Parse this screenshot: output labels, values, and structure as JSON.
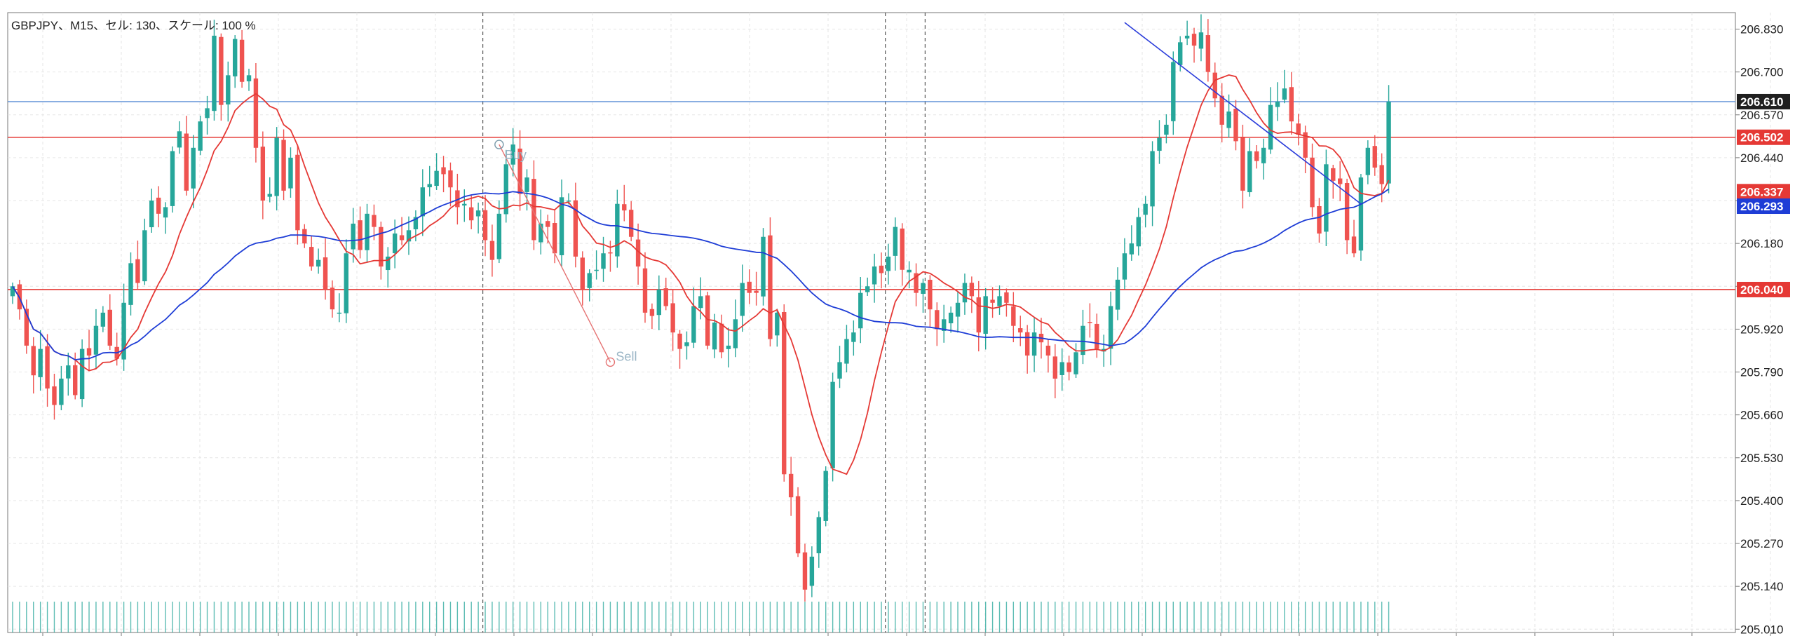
{
  "header": {
    "text": "GBPJPY、M15、セル: 130、スケール: 100 %"
  },
  "price_axis": {
    "labels": [
      "206.830",
      "206.700",
      "206.570",
      "206.440",
      "206.310",
      "206.180",
      "206.050",
      "205.920",
      "205.790",
      "205.660",
      "205.530",
      "205.400",
      "205.270",
      "205.140",
      "205.010"
    ]
  },
  "colors": {
    "bull": "#26a69a",
    "bear": "#ef5350",
    "ma_fast": "#e53935",
    "ma_slow": "#1e3dd6",
    "level": "#e53935",
    "current": "#5b8fd6",
    "trendline": "#2b3ddb",
    "signal_line": "#e57373",
    "signal_text": "#9bb6c6"
  },
  "chart_data": {
    "type": "candlestick",
    "title": "GBPJPY、M15、セル: 130、スケール: 100 %",
    "symbol": "GBPJPY",
    "timeframe": "M15",
    "ylim": [
      205.0,
      206.88
    ],
    "grid": true,
    "bars": 200,
    "closes": [
      206.05,
      205.98,
      205.87,
      205.78,
      205.86,
      205.74,
      205.69,
      205.77,
      205.81,
      205.72,
      205.86,
      205.84,
      205.93,
      205.97,
      205.87,
      205.83,
      206.0,
      206.12,
      206.06,
      206.22,
      206.31,
      206.27,
      206.29,
      206.46,
      206.52,
      206.34,
      206.47,
      206.55,
      206.59,
      206.81,
      206.6,
      206.69,
      206.8,
      206.67,
      206.69,
      206.47,
      206.31,
      206.33,
      206.5,
      206.34,
      206.44,
      206.22,
      206.18,
      206.11,
      206.13,
      206.04,
      205.98,
      205.97,
      206.15,
      206.24,
      206.16,
      206.27,
      206.23,
      206.11,
      206.14,
      206.21,
      206.19,
      206.22,
      206.26,
      206.35,
      206.36,
      206.4,
      206.39,
      206.35,
      206.29,
      206.3,
      206.25,
      206.28,
      206.19,
      206.13,
      206.27,
      206.42,
      206.48,
      206.33,
      206.38,
      206.19,
      206.24,
      206.23,
      206.15,
      206.32,
      206.31,
      206.14,
      206.04,
      206.09,
      206.1,
      206.15,
      206.15,
      206.3,
      206.28,
      206.2,
      206.11,
      205.97,
      205.96,
      206.04,
      205.99,
      205.91,
      205.86,
      205.88,
      205.99,
      206.02,
      205.87,
      205.94,
      205.85,
      205.87,
      205.95,
      206.06,
      206.03,
      206.03,
      206.2,
      205.89,
      205.97,
      205.48,
      205.41,
      205.24,
      205.13,
      205.23,
      205.35,
      205.49,
      205.76,
      205.82,
      205.89,
      205.91,
      206.03,
      206.05,
      206.11,
      206.09,
      206.14,
      206.23,
      206.1,
      206.1,
      206.03,
      206.06,
      205.98,
      205.92,
      205.95,
      205.97,
      206.0,
      206.06,
      206.02,
      205.91,
      206.02,
      206.0,
      206.02,
      206.0,
      205.93,
      205.91,
      205.84,
      205.91,
      205.88,
      205.84,
      205.77,
      205.82,
      205.79,
      205.85,
      205.93,
      205.94,
      205.86,
      205.86,
      205.99,
      206.07,
      206.15,
      206.18,
      206.26,
      206.3,
      206.46,
      206.5,
      206.54,
      206.73,
      206.79,
      206.81,
      206.78,
      206.82,
      206.7,
      206.62,
      206.54,
      206.58,
      206.49,
      206.34,
      206.46,
      206.43,
      206.47,
      206.6,
      206.61,
      206.65,
      206.55,
      206.51,
      206.44,
      206.29,
      206.21,
      206.42,
      206.37,
      206.36,
      206.19,
      206.15,
      206.38,
      206.47,
      206.41,
      206.36,
      206.61
    ],
    "series": [
      {
        "type": "moving-average",
        "period": 10
      },
      {
        "type": "moving-average",
        "period": 50
      }
    ],
    "horizontal_levels": [
      206.502,
      206.04
    ],
    "current_price": 206.61,
    "badges": [
      {
        "label": "206.610",
        "value": 206.61,
        "color": "#1f1f1f"
      },
      {
        "label": "206.502",
        "value": 206.502,
        "color": "#e53935"
      },
      {
        "label": "206.337",
        "value": 206.337,
        "color": "#e53935"
      },
      {
        "label": "206.293",
        "value": 206.293,
        "color": "#1e3dd6"
      },
      {
        "label": "206.040",
        "value": 206.04,
        "color": "#e53935"
      }
    ],
    "signals": [
      {
        "label": "Buy",
        "price": 206.48
      },
      {
        "label": "Sell",
        "price": 205.82
      }
    ],
    "trendline": {
      "start_price": 206.85,
      "end_price": 206.3
    },
    "vertical_separators": 3
  }
}
